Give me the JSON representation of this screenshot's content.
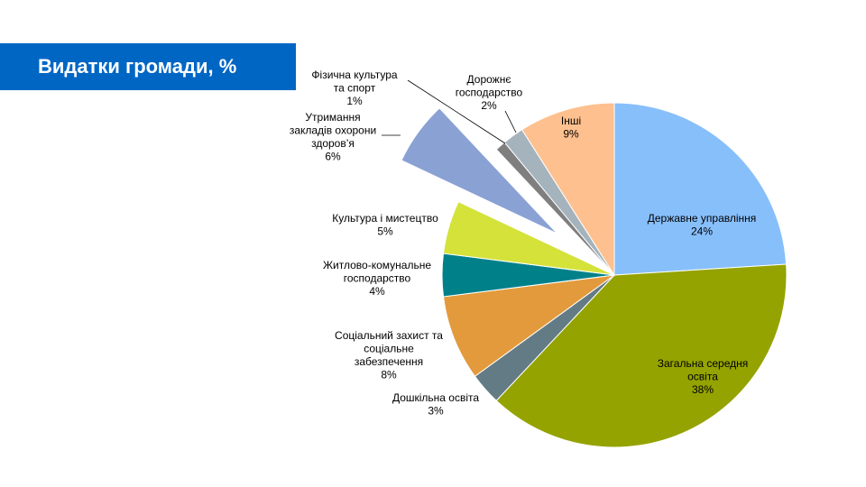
{
  "slide": {
    "title": "Видатки громади, %"
  },
  "colors": {
    "title_bg": "#0066c4",
    "title_text": "#ffffff"
  },
  "chart_data": {
    "type": "pie",
    "title": "",
    "slices": [
      {
        "lines": [
          "Державне управління",
          "24%"
        ],
        "value": 24,
        "color": "#87bffb"
      },
      {
        "lines": [
          "Загальна середня",
          "освіта",
          "38%"
        ],
        "value": 38,
        "color": "#94a300"
      },
      {
        "lines": [
          "Дошкільна освіта",
          "3%"
        ],
        "value": 3,
        "color": "#637b84"
      },
      {
        "lines": [
          "Соціальний  захист та",
          "соціальне",
          "забезпечення",
          "8%"
        ],
        "value": 8,
        "color": "#e39a3c"
      },
      {
        "lines": [
          "Житлово-комунальне",
          "господарство",
          "4%"
        ],
        "value": 4,
        "color": "#00818a"
      },
      {
        "lines": [
          "Культура і мистецтво",
          "5%"
        ],
        "value": 5,
        "color": "#d4e23a"
      },
      {
        "lines": [
          "Утримання",
          "закладів охорони",
          "здоров’я",
          "6%"
        ],
        "value": 6,
        "color": "#8aa1d4",
        "exploded": true
      },
      {
        "lines": [
          "Фізична культура",
          "та спорт",
          "1%"
        ],
        "value": 1,
        "color": "#7f7f7f"
      },
      {
        "lines": [
          "Дорожнє",
          "господарство",
          "2%"
        ],
        "value": 2,
        "color": "#a5b3bd"
      },
      {
        "lines": [
          "Інші",
          "9%"
        ],
        "value": 9,
        "color": "#fdc08e"
      }
    ]
  }
}
